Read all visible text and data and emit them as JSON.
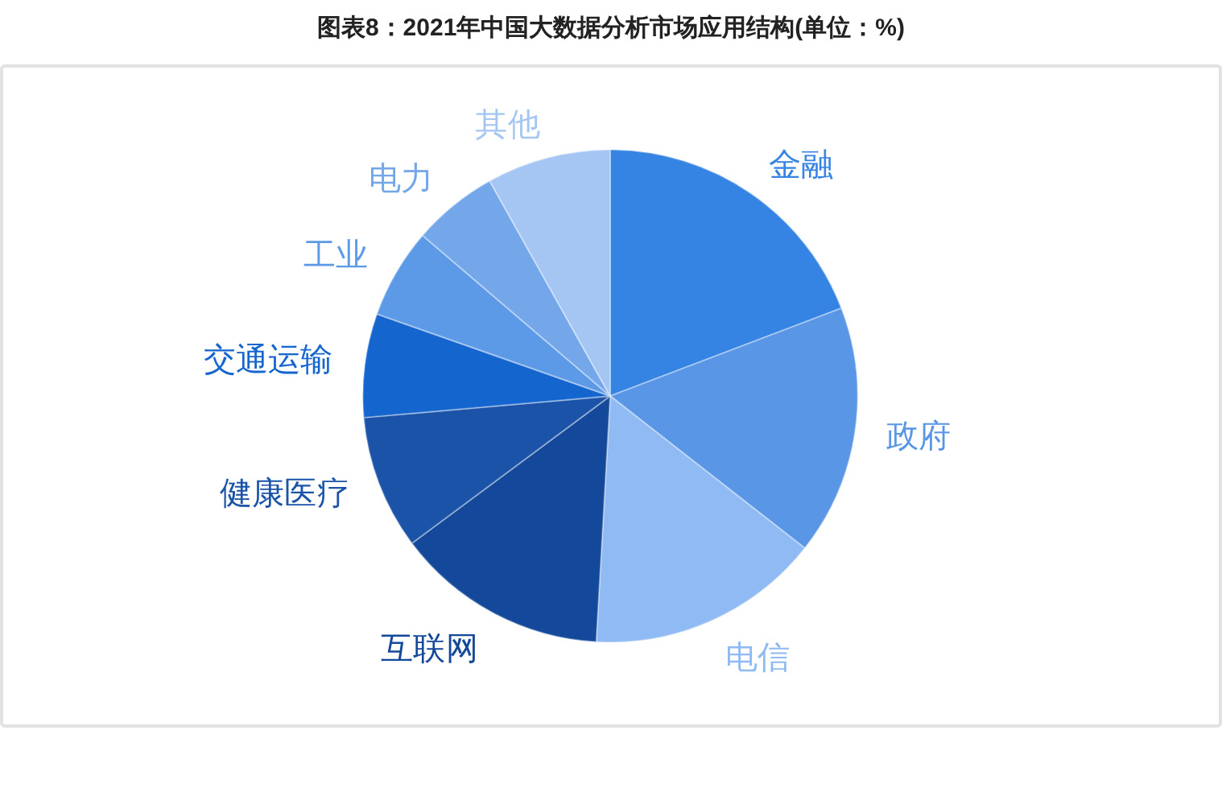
{
  "chart_data": {
    "type": "pie",
    "title": "图表8：2021年中国大数据分析市场应用结构(单位：%)",
    "categories": [
      "金融",
      "政府",
      "电信",
      "互联网",
      "健康医疗",
      "交通运输",
      "工业",
      "电力",
      "其他"
    ],
    "values": [
      19.2,
      16.4,
      15.3,
      13.9,
      8.8,
      6.8,
      5.9,
      5.6,
      8.1
    ],
    "colors": [
      "#3584e4",
      "#5a96e6",
      "#8fbaf3",
      "#13489a",
      "#1a53a8",
      "#1565cf",
      "#5c9ae8",
      "#74a6ea",
      "#a5c6f3"
    ]
  }
}
